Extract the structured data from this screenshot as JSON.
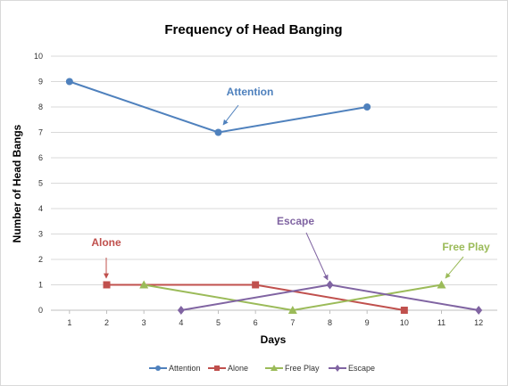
{
  "chart_data": {
    "type": "line",
    "title": "Frequency of Head Banging",
    "xlabel": "Days",
    "ylabel": "Number of Head Bangs",
    "x_ticks": [
      1,
      2,
      3,
      4,
      5,
      6,
      7,
      8,
      9,
      10,
      11,
      12
    ],
    "xlim": [
      0.5,
      12.5
    ],
    "ylim": [
      0,
      10
    ],
    "y_ticks": [
      0,
      1,
      2,
      3,
      4,
      5,
      6,
      7,
      8,
      9,
      10
    ],
    "grid": "horizontal",
    "legend_position": "bottom",
    "series": [
      {
        "name": "Attention",
        "color": "#4f81bd",
        "marker": "circle",
        "x": [
          1,
          5,
          9
        ],
        "y": [
          9,
          7,
          8
        ]
      },
      {
        "name": "Alone",
        "color": "#c0504d",
        "marker": "square",
        "x": [
          2,
          6,
          10
        ],
        "y": [
          1,
          1,
          0
        ]
      },
      {
        "name": "Free Play",
        "color": "#9bbb59",
        "marker": "triangle",
        "x": [
          3,
          7,
          11
        ],
        "y": [
          1,
          0,
          1
        ]
      },
      {
        "name": "Escape",
        "color": "#8064a2",
        "marker": "diamond",
        "x": [
          4,
          8,
          12
        ],
        "y": [
          0,
          1,
          0
        ]
      }
    ],
    "annotations": [
      {
        "text": "Attention",
        "color": "#4f81bd",
        "target_x": 5,
        "target_y": 7
      },
      {
        "text": "Alone",
        "color": "#c0504d",
        "target_x": 2,
        "target_y": 1
      },
      {
        "text": "Escape",
        "color": "#8064a2",
        "target_x": 8,
        "target_y": 1
      },
      {
        "text": "Free Play",
        "color": "#9bbb59",
        "target_x": 11,
        "target_y": 1
      }
    ]
  }
}
